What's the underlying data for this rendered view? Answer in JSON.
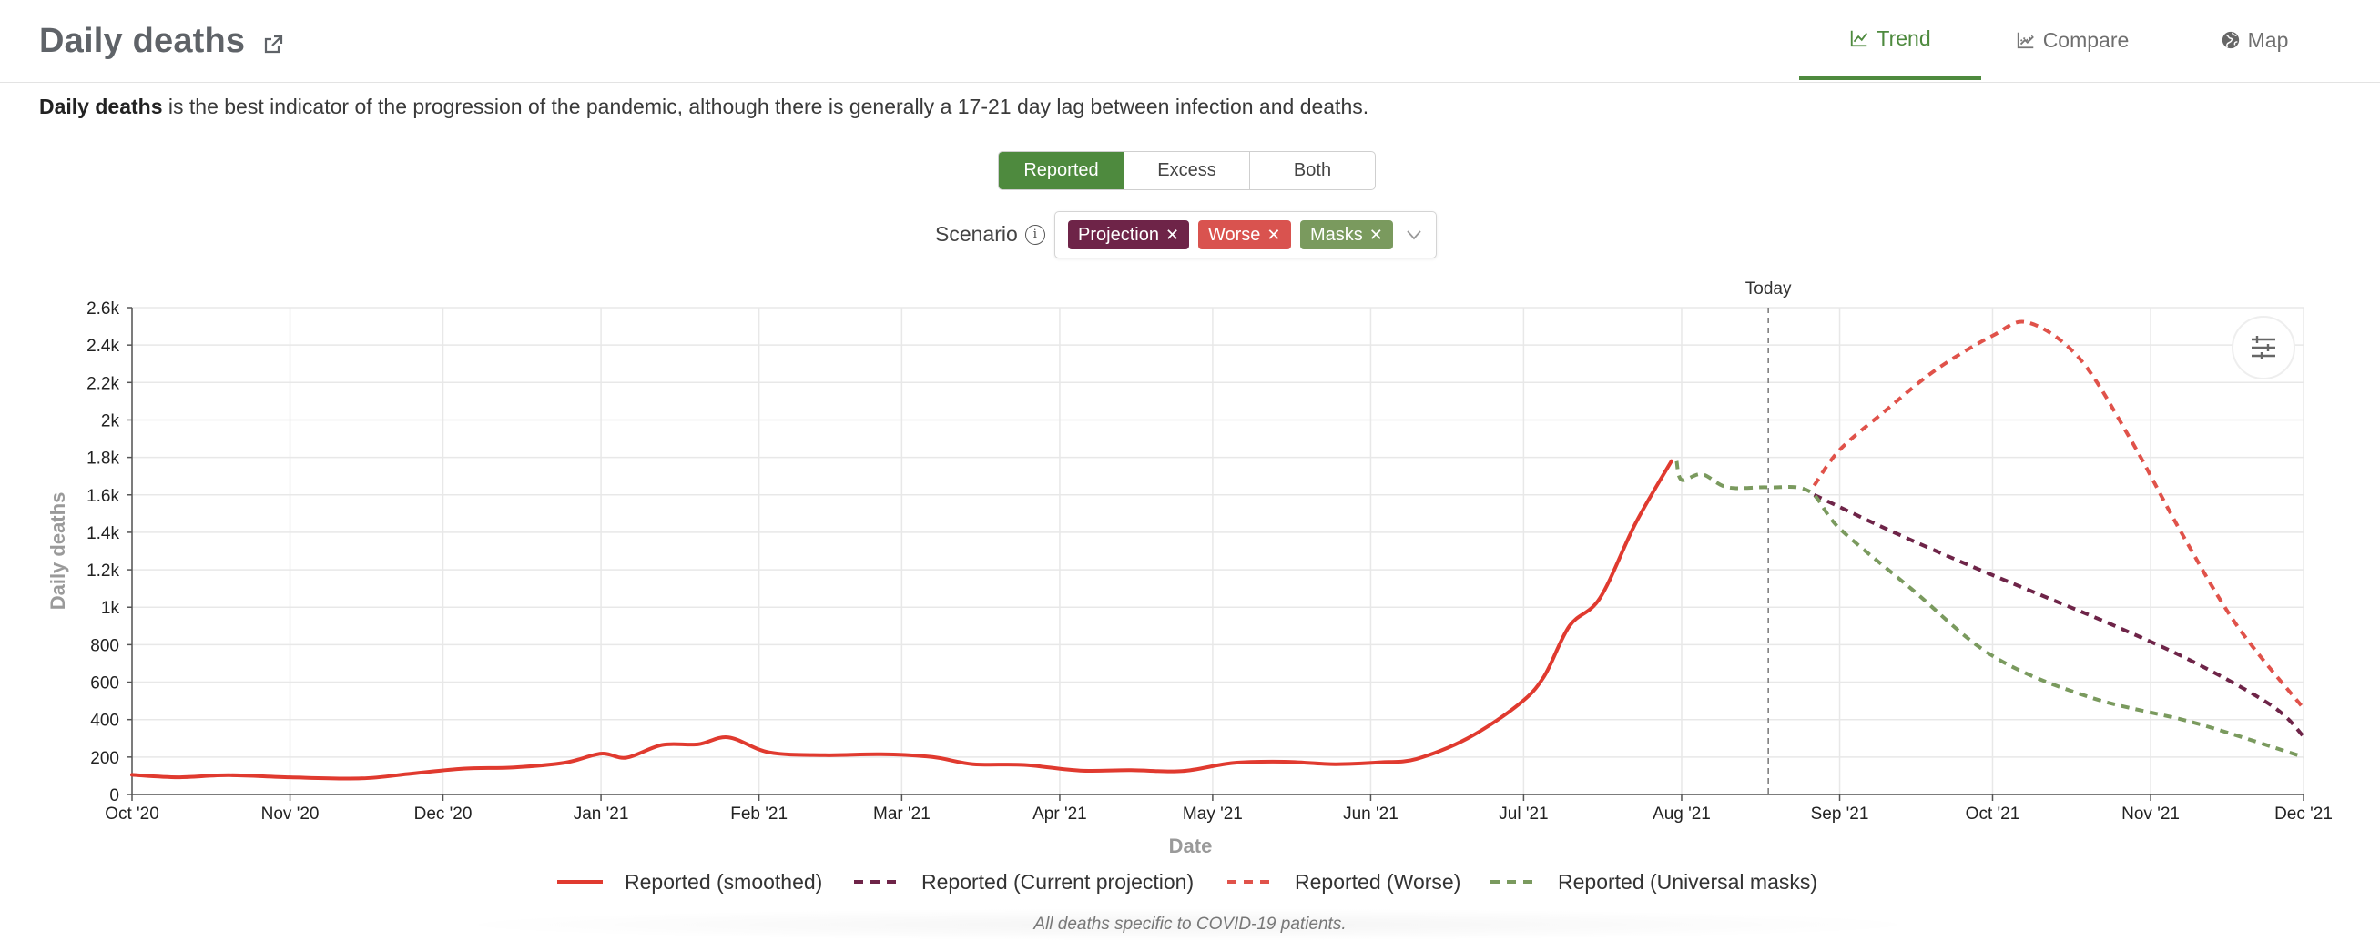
{
  "header": {
    "title": "Daily deaths",
    "tabs": [
      {
        "label": "Trend",
        "active": true,
        "icon": "line-chart-icon"
      },
      {
        "label": "Compare",
        "active": false,
        "icon": "compare-chart-icon"
      },
      {
        "label": "Map",
        "active": false,
        "icon": "globe-icon"
      }
    ]
  },
  "description": {
    "bold": "Daily deaths",
    "rest": " is the best indicator of the progression of the pandemic, although there is generally a 17-21 day lag between infection and deaths."
  },
  "toggle": {
    "options": [
      "Reported",
      "Excess",
      "Both"
    ],
    "selected": "Reported"
  },
  "scenario": {
    "label": "Scenario",
    "chips": [
      {
        "label": "Projection",
        "color": "#6e2448"
      },
      {
        "label": "Worse",
        "color": "#d9534f"
      },
      {
        "label": "Masks",
        "color": "#7a9a5e"
      }
    ]
  },
  "settings_icon": "sliders-icon",
  "footnote": "All deaths specific to COVID-19 patients.",
  "chart_data": {
    "type": "line",
    "title": "",
    "xlabel": "Date",
    "ylabel": "Daily deaths",
    "ylim": [
      0,
      2600
    ],
    "yticks": [
      {
        "v": 0,
        "label": "0"
      },
      {
        "v": 200,
        "label": "200"
      },
      {
        "v": 400,
        "label": "400"
      },
      {
        "v": 600,
        "label": "600"
      },
      {
        "v": 800,
        "label": "800"
      },
      {
        "v": 1000,
        "label": "1k"
      },
      {
        "v": 1200,
        "label": "1.2k"
      },
      {
        "v": 1400,
        "label": "1.4k"
      },
      {
        "v": 1600,
        "label": "1.6k"
      },
      {
        "v": 1800,
        "label": "1.8k"
      },
      {
        "v": 2000,
        "label": "2k"
      },
      {
        "v": 2200,
        "label": "2.2k"
      },
      {
        "v": 2400,
        "label": "2.4k"
      },
      {
        "v": 2600,
        "label": "2.6k"
      }
    ],
    "xlim": [
      "2020-10-01",
      "2021-12-01"
    ],
    "xticks": [
      {
        "d": "2020-10-01",
        "label": "Oct '20"
      },
      {
        "d": "2020-11-01",
        "label": "Nov '20"
      },
      {
        "d": "2020-12-01",
        "label": "Dec '20"
      },
      {
        "d": "2021-01-01",
        "label": "Jan '21"
      },
      {
        "d": "2021-02-01",
        "label": "Feb '21"
      },
      {
        "d": "2021-03-01",
        "label": "Mar '21"
      },
      {
        "d": "2021-04-01",
        "label": "Apr '21"
      },
      {
        "d": "2021-05-01",
        "label": "May '21"
      },
      {
        "d": "2021-06-01",
        "label": "Jun '21"
      },
      {
        "d": "2021-07-01",
        "label": "Jul '21"
      },
      {
        "d": "2021-08-01",
        "label": "Aug '21"
      },
      {
        "d": "2021-09-01",
        "label": "Sep '21"
      },
      {
        "d": "2021-10-01",
        "label": "Oct '21"
      },
      {
        "d": "2021-11-01",
        "label": "Nov '21"
      },
      {
        "d": "2021-12-01",
        "label": "Dec '21"
      }
    ],
    "grid": true,
    "today": {
      "date": "2021-08-18",
      "label": "Today"
    },
    "legend_position": "bottom",
    "series": [
      {
        "name": "Reported (smoothed)",
        "color": "#e03a2f",
        "dashed": false,
        "points": [
          [
            "2020-10-01",
            105
          ],
          [
            "2020-10-10",
            92
          ],
          [
            "2020-10-20",
            103
          ],
          [
            "2020-11-01",
            92
          ],
          [
            "2020-11-15",
            86
          ],
          [
            "2020-11-25",
            112
          ],
          [
            "2020-12-05",
            138
          ],
          [
            "2020-12-15",
            145
          ],
          [
            "2020-12-25",
            170
          ],
          [
            "2021-01-01",
            218
          ],
          [
            "2021-01-06",
            197
          ],
          [
            "2021-01-13",
            265
          ],
          [
            "2021-01-20",
            268
          ],
          [
            "2021-01-26",
            305
          ],
          [
            "2021-02-03",
            225
          ],
          [
            "2021-02-14",
            210
          ],
          [
            "2021-02-25",
            215
          ],
          [
            "2021-03-07",
            200
          ],
          [
            "2021-03-15",
            162
          ],
          [
            "2021-03-25",
            158
          ],
          [
            "2021-04-05",
            128
          ],
          [
            "2021-04-15",
            130
          ],
          [
            "2021-04-25",
            125
          ],
          [
            "2021-05-05",
            168
          ],
          [
            "2021-05-15",
            175
          ],
          [
            "2021-05-25",
            162
          ],
          [
            "2021-06-03",
            172
          ],
          [
            "2021-06-10",
            190
          ],
          [
            "2021-06-20",
            300
          ],
          [
            "2021-06-30",
            480
          ],
          [
            "2021-07-05",
            630
          ],
          [
            "2021-07-10",
            900
          ],
          [
            "2021-07-16",
            1050
          ],
          [
            "2021-07-23",
            1450
          ],
          [
            "2021-07-30",
            1780
          ]
        ]
      },
      {
        "name": "Reported (Current projection)",
        "color": "#6e2448",
        "dashed": true,
        "points": [
          [
            "2021-08-27",
            1600
          ],
          [
            "2021-09-10",
            1420
          ],
          [
            "2021-09-25",
            1240
          ],
          [
            "2021-10-10",
            1070
          ],
          [
            "2021-10-25",
            900
          ],
          [
            "2021-11-10",
            700
          ],
          [
            "2021-11-25",
            470
          ],
          [
            "2021-12-01",
            310
          ]
        ]
      },
      {
        "name": "Reported (Worse)",
        "color": "#e0524a",
        "dashed": true,
        "points": [
          [
            "2021-08-27",
            1650
          ],
          [
            "2021-09-01",
            1840
          ],
          [
            "2021-09-10",
            2050
          ],
          [
            "2021-09-20",
            2270
          ],
          [
            "2021-10-01",
            2450
          ],
          [
            "2021-10-08",
            2520
          ],
          [
            "2021-10-18",
            2330
          ],
          [
            "2021-10-28",
            1900
          ],
          [
            "2021-11-07",
            1400
          ],
          [
            "2021-11-18",
            900
          ],
          [
            "2021-12-01",
            460
          ]
        ]
      },
      {
        "name": "Reported (Universal masks)",
        "color": "#7a9a5e",
        "dashed": true,
        "points": [
          [
            "2021-07-31",
            1780
          ],
          [
            "2021-08-01",
            1680
          ],
          [
            "2021-08-05",
            1710
          ],
          [
            "2021-08-10",
            1640
          ],
          [
            "2021-08-18",
            1640
          ],
          [
            "2021-08-26",
            1620
          ],
          [
            "2021-09-01",
            1420
          ],
          [
            "2021-09-15",
            1100
          ],
          [
            "2021-10-01",
            740
          ],
          [
            "2021-10-20",
            520
          ],
          [
            "2021-11-10",
            380
          ],
          [
            "2021-12-01",
            200
          ]
        ]
      }
    ]
  }
}
